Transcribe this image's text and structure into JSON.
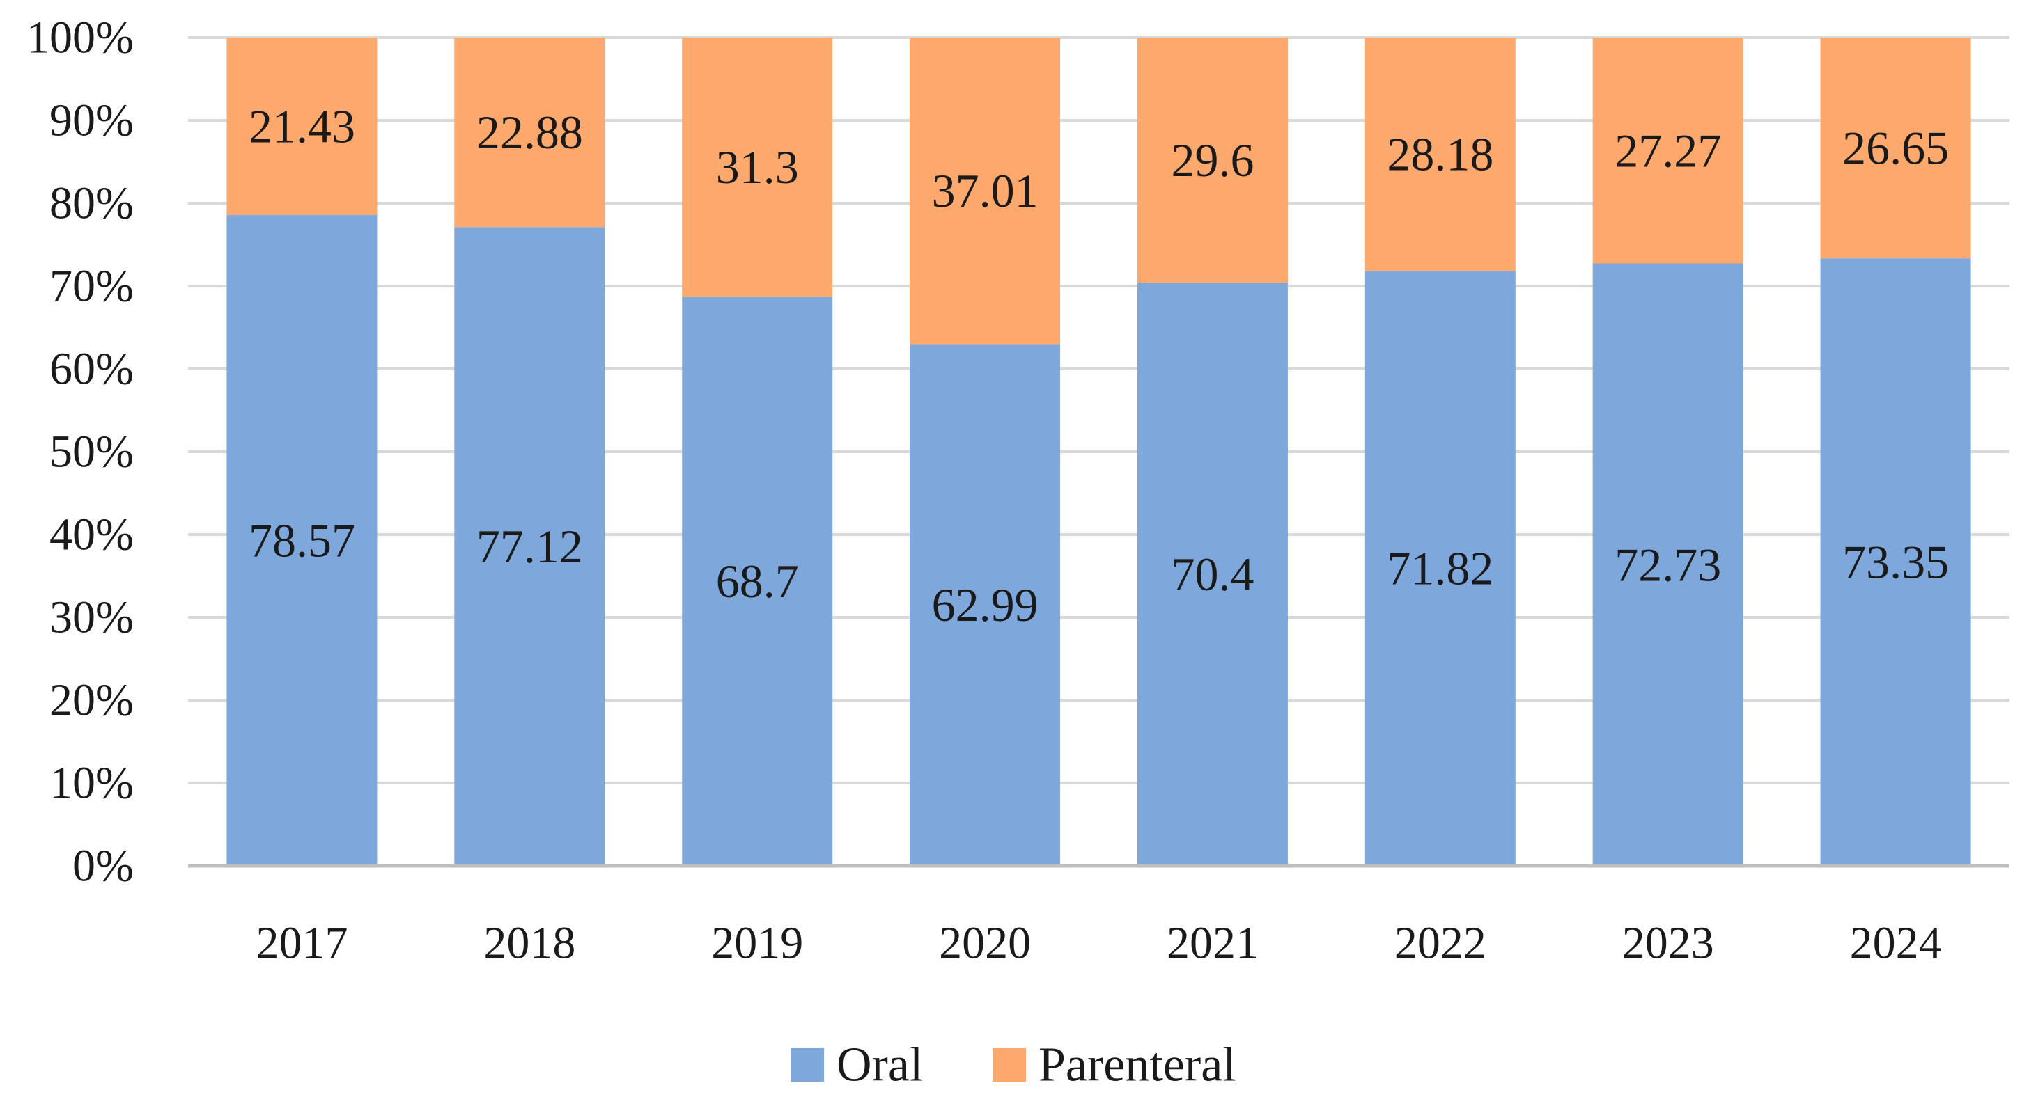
{
  "chart_data": {
    "type": "bar",
    "stacked": true,
    "categories": [
      "2017",
      "2018",
      "2019",
      "2020",
      "2021",
      "2022",
      "2023",
      "2024"
    ],
    "series": [
      {
        "name": "Oral",
        "color": "#7ea7dc",
        "values": [
          78.57,
          77.12,
          68.7,
          62.99,
          70.4,
          71.82,
          72.73,
          73.35
        ],
        "labels": [
          "78.57",
          "77.12",
          "68.7",
          "62.99",
          "70.4",
          "71.82",
          "72.73",
          "73.35"
        ]
      },
      {
        "name": "Parenteral",
        "color": "#fda86c",
        "values": [
          21.43,
          22.88,
          31.3,
          37.01,
          29.6,
          28.18,
          27.27,
          26.65
        ],
        "labels": [
          "21.43",
          "22.88",
          "31.3",
          "37.01",
          "29.6",
          "28.18",
          "27.27",
          "26.65"
        ]
      }
    ],
    "ylim": [
      0,
      100
    ],
    "yticks": [
      "0%",
      "10%",
      "20%",
      "30%",
      "40%",
      "50%",
      "60%",
      "70%",
      "80%",
      "90%",
      "100%"
    ],
    "grid": true,
    "legend_position": "bottom-center",
    "title": "",
    "xlabel": "",
    "ylabel": ""
  }
}
